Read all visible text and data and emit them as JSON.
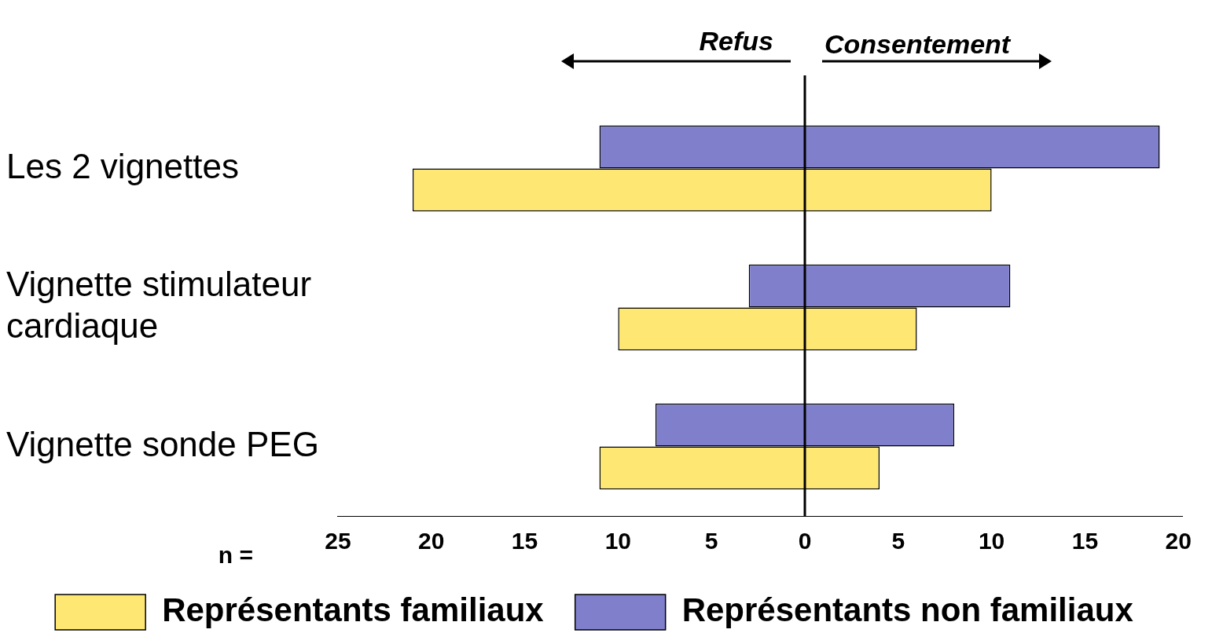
{
  "chart_data": {
    "type": "bar",
    "orientation": "horizontal",
    "categories": [
      "Les 2 vignettes",
      "Vignette stimulateur cardiaque",
      "Vignette sonde PEG"
    ],
    "series": [
      {
        "name": "Représentants non familiaux",
        "color": "#7f7fcc",
        "base": [
          -11,
          -3,
          -8
        ],
        "values": [
          30,
          14,
          16
        ]
      },
      {
        "name": "Représentants familiaux",
        "color": "#fee873",
        "base": [
          -21,
          -10,
          -11
        ],
        "values": [
          31,
          16,
          15
        ]
      }
    ],
    "xlim": [
      -25,
      20.2
    ],
    "xticks": [
      {
        "value": -25,
        "label": "25"
      },
      {
        "value": -20,
        "label": "20"
      },
      {
        "value": -15,
        "label": "15"
      },
      {
        "value": -10,
        "label": "10"
      },
      {
        "value": -5,
        "label": "5"
      },
      0,
      5,
      10,
      15,
      20
    ],
    "ref_lines": [
      {
        "axis": "x",
        "value": 0,
        "color": "#000000"
      }
    ],
    "annotations": [
      "Refus",
      "Consentement",
      "n ="
    ],
    "grid": false,
    "legend": "bottom"
  }
}
